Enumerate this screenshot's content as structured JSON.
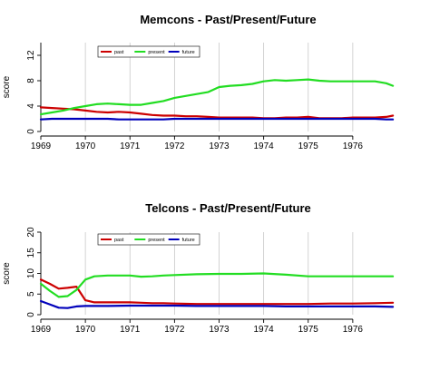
{
  "colors": {
    "past": "#cc0000",
    "present": "#22dd22",
    "future": "#0000bb",
    "grid": "#c8c8c8"
  },
  "chart_data": [
    {
      "type": "line",
      "title": "Memcons - Past/Present/Future",
      "xlabel": "",
      "ylabel": "score",
      "xlim": [
        1969,
        1977
      ],
      "ylim": [
        0,
        14
      ],
      "x_ticks": [
        1969,
        1970,
        1971,
        1972,
        1973,
        1974,
        1975,
        1976
      ],
      "x_tick_labels": [
        "1969",
        "1970",
        "1971",
        "1972",
        "1973",
        "1974",
        "1975",
        "1976"
      ],
      "y_ticks": [
        0,
        4,
        8,
        12
      ],
      "y_tick_labels": [
        "0",
        "4",
        "8",
        "12"
      ],
      "grid": "vertical",
      "legend": "top-center",
      "x": [
        1969.0,
        1969.25,
        1969.5,
        1969.75,
        1970.0,
        1970.25,
        1970.5,
        1970.75,
        1971.0,
        1971.25,
        1971.5,
        1971.75,
        1972.0,
        1972.25,
        1972.5,
        1972.75,
        1973.0,
        1973.25,
        1973.5,
        1973.75,
        1974.0,
        1974.25,
        1974.5,
        1974.75,
        1975.0,
        1975.25,
        1975.5,
        1975.75,
        1976.0,
        1976.25,
        1976.5,
        1976.75,
        1976.9
      ],
      "series": [
        {
          "name": "past",
          "color_key": "past",
          "values": [
            3.8,
            3.7,
            3.6,
            3.5,
            3.3,
            3.1,
            3.0,
            3.1,
            3.0,
            2.8,
            2.6,
            2.5,
            2.5,
            2.4,
            2.4,
            2.3,
            2.2,
            2.2,
            2.2,
            2.2,
            2.1,
            2.1,
            2.2,
            2.2,
            2.3,
            2.1,
            2.1,
            2.1,
            2.2,
            2.2,
            2.2,
            2.3,
            2.5
          ]
        },
        {
          "name": "present",
          "color_key": "present",
          "values": [
            2.7,
            3.0,
            3.3,
            3.7,
            4.0,
            4.3,
            4.4,
            4.3,
            4.2,
            4.2,
            4.5,
            4.8,
            5.3,
            5.6,
            5.9,
            6.2,
            7.0,
            7.2,
            7.3,
            7.5,
            7.9,
            8.1,
            8.0,
            8.1,
            8.2,
            8.0,
            7.9,
            7.9,
            7.9,
            7.9,
            7.9,
            7.6,
            7.2
          ]
        },
        {
          "name": "future",
          "color_key": "future",
          "values": [
            1.9,
            2.0,
            2.0,
            2.0,
            2.0,
            2.0,
            2.0,
            1.9,
            1.9,
            1.9,
            1.9,
            1.9,
            2.0,
            2.0,
            2.0,
            2.0,
            2.0,
            2.0,
            2.0,
            2.0,
            2.0,
            2.0,
            2.0,
            2.0,
            2.0,
            2.0,
            2.0,
            2.0,
            2.0,
            2.0,
            2.0,
            1.9,
            1.9
          ]
        }
      ]
    },
    {
      "type": "line",
      "title": "Telcons - Past/Present/Future",
      "xlabel": "",
      "ylabel": "score",
      "xlim": [
        1969,
        1977
      ],
      "ylim": [
        0,
        20
      ],
      "x_ticks": [
        1969,
        1970,
        1971,
        1972,
        1973,
        1974,
        1975,
        1976
      ],
      "x_tick_labels": [
        "1969",
        "1970",
        "1971",
        "1972",
        "1973",
        "1974",
        "1975",
        "1976"
      ],
      "y_ticks": [
        0,
        5,
        10,
        15,
        20
      ],
      "y_tick_labels": [
        "0",
        "5",
        "10",
        "15",
        "20"
      ],
      "grid": "vertical",
      "legend": "top-center",
      "x": [
        1969.0,
        1969.2,
        1969.4,
        1969.6,
        1969.8,
        1970.0,
        1970.2,
        1970.5,
        1971.0,
        1971.25,
        1971.5,
        1971.75,
        1972.0,
        1972.5,
        1973.0,
        1973.5,
        1974.0,
        1974.5,
        1975.0,
        1975.5,
        1976.0,
        1976.5,
        1976.9
      ],
      "series": [
        {
          "name": "past",
          "color_key": "past",
          "values": [
            8.5,
            7.5,
            6.3,
            6.5,
            6.8,
            3.5,
            3.0,
            3.0,
            3.0,
            2.9,
            2.8,
            2.8,
            2.7,
            2.6,
            2.6,
            2.6,
            2.6,
            2.6,
            2.6,
            2.7,
            2.7,
            2.8,
            2.9
          ]
        },
        {
          "name": "present",
          "color_key": "present",
          "values": [
            7.5,
            5.8,
            4.3,
            4.5,
            6.0,
            8.5,
            9.3,
            9.5,
            9.5,
            9.2,
            9.3,
            9.5,
            9.6,
            9.8,
            9.9,
            9.9,
            10.0,
            9.7,
            9.3,
            9.3,
            9.3,
            9.3,
            9.3
          ]
        },
        {
          "name": "future",
          "color_key": "future",
          "values": [
            3.3,
            2.5,
            1.7,
            1.6,
            2.0,
            2.1,
            2.1,
            2.1,
            2.2,
            2.2,
            2.2,
            2.2,
            2.2,
            2.1,
            2.1,
            2.1,
            2.1,
            2.0,
            2.0,
            2.0,
            2.0,
            2.0,
            1.9
          ]
        }
      ]
    }
  ]
}
